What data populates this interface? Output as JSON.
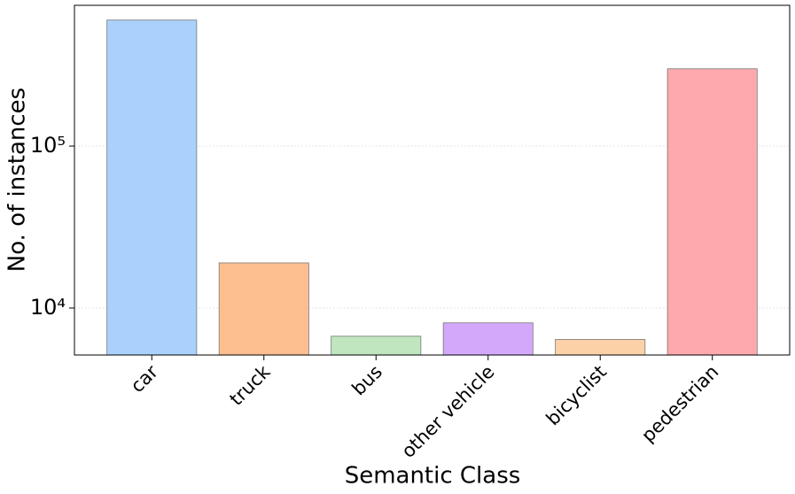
{
  "chart_data": {
    "type": "bar",
    "x_label": "Semantic Class",
    "y_label": "No. of instances",
    "categories": [
      "car",
      "truck",
      "bus",
      "other vehicle",
      "bicyclist",
      "pedestrian"
    ],
    "values": [
      600000,
      19000,
      6700,
      8100,
      6400,
      300000
    ],
    "colors": [
      "#a9d1fc",
      "#fdbf8f",
      "#bfe6bf",
      "#d3a8fb",
      "#fdd1a7",
      "#fda9ad"
    ],
    "log_scale": true,
    "ylim": [
      5130,
      740000
    ],
    "yticks": [
      {
        "value": 10000,
        "label": "10⁴"
      },
      {
        "value": 100000,
        "label": "10⁵"
      }
    ],
    "grid": true
  }
}
